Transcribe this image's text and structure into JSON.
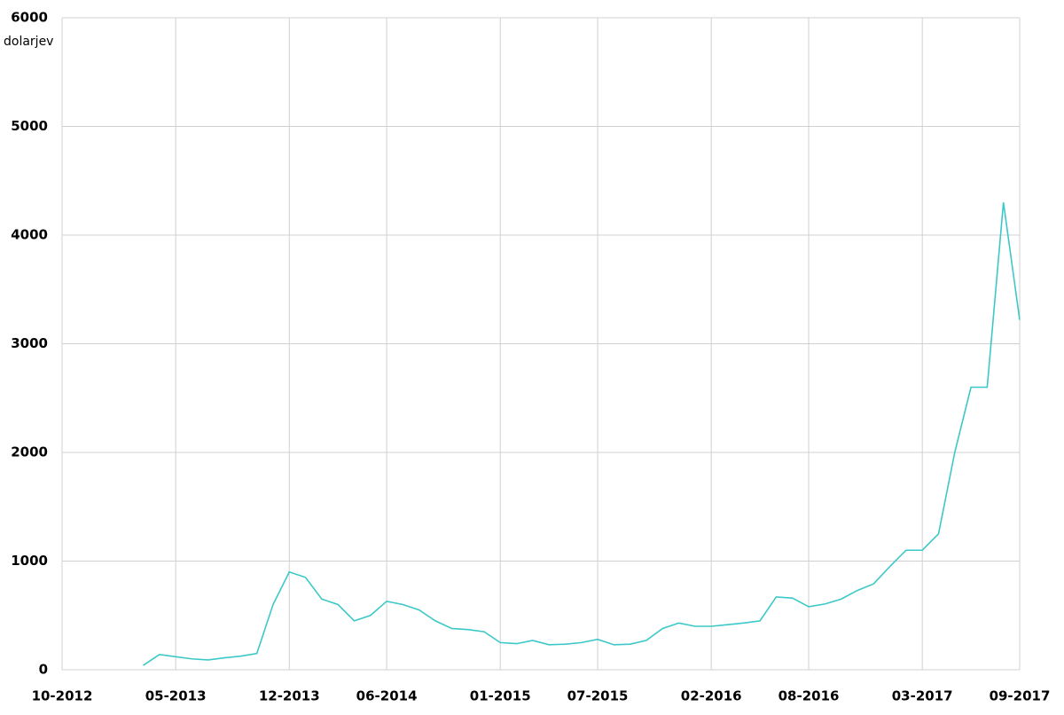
{
  "chart_data": {
    "type": "line",
    "y_unit": "dolarjev",
    "x": [
      "03-2013",
      "04-2013",
      "05-2013",
      "06-2013",
      "07-2013",
      "08-2013",
      "09-2013",
      "10-2013",
      "11-2013",
      "12-2013",
      "01-2014",
      "02-2014",
      "03-2014",
      "04-2014",
      "05-2014",
      "06-2014",
      "07-2014",
      "08-2014",
      "09-2014",
      "10-2014",
      "11-2014",
      "12-2014",
      "01-2015",
      "02-2015",
      "03-2015",
      "04-2015",
      "05-2015",
      "06-2015",
      "07-2015",
      "08-2015",
      "09-2015",
      "10-2015",
      "11-2015",
      "12-2015",
      "01-2016",
      "02-2016",
      "03-2016",
      "04-2016",
      "05-2016",
      "06-2016",
      "07-2016",
      "08-2016",
      "09-2016",
      "10-2016",
      "11-2016",
      "12-2016",
      "01-2017",
      "02-2017",
      "03-2017",
      "04-2017",
      "05-2017",
      "06-2017",
      "07-2017",
      "08-2017",
      "09-2017"
    ],
    "series": [
      {
        "color": "#3cc8c8",
        "values": [
          40,
          140,
          120,
          100,
          90,
          110,
          125,
          150,
          600,
          900,
          850,
          650,
          600,
          450,
          500,
          630,
          600,
          550,
          450,
          380,
          370,
          350,
          250,
          240,
          270,
          230,
          235,
          250,
          280,
          230,
          235,
          270,
          380,
          430,
          400,
          400,
          415,
          430,
          450,
          670,
          660,
          580,
          605,
          650,
          730,
          790,
          950,
          1100,
          1100,
          1250,
          2000,
          2600,
          2600,
          4300,
          3220
        ]
      }
    ],
    "xlim": [
      "10-2012",
      "09-2017"
    ],
    "xticks": [
      "10-2012",
      "05-2013",
      "12-2013",
      "06-2014",
      "01-2015",
      "07-2015",
      "02-2016",
      "08-2016",
      "03-2017",
      "09-2017"
    ],
    "ylim": [
      0,
      6000
    ],
    "yticks": [
      0,
      1000,
      2000,
      3000,
      4000,
      5000,
      6000
    ],
    "grid": true
  }
}
